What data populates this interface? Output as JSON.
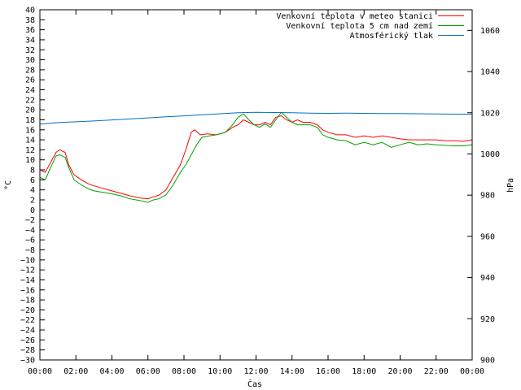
{
  "chart_data": {
    "type": "line",
    "title": "",
    "xlabel": "Čas",
    "ylabel_left": "°C",
    "ylabel_right": "hPa",
    "x_ticks": [
      "00:00",
      "02:00",
      "04:00",
      "06:00",
      "08:00",
      "10:00",
      "12:00",
      "14:00",
      "16:00",
      "18:00",
      "20:00",
      "22:00",
      "00:00"
    ],
    "xlim_hours": [
      0,
      24
    ],
    "ylim_left": [
      -30,
      40
    ],
    "ylim_right": [
      900,
      1070
    ],
    "y_ticks_left": [
      40,
      38,
      36,
      34,
      32,
      30,
      28,
      26,
      24,
      22,
      20,
      18,
      16,
      14,
      12,
      10,
      8,
      6,
      4,
      2,
      0,
      -2,
      -4,
      -6,
      -8,
      -10,
      -12,
      -14,
      -16,
      -18,
      -20,
      -22,
      -24,
      -26,
      -28,
      -30
    ],
    "y_ticks_right": [
      1060,
      1040,
      1020,
      1000,
      980,
      960,
      940,
      920,
      900
    ],
    "grid": false,
    "legend_position": "top-right",
    "series": [
      {
        "name": "Venkovní teplota v meteo stanici",
        "color": "#ff0000",
        "axis": "left",
        "points": [
          [
            0,
            8
          ],
          [
            0.3,
            7.5
          ],
          [
            0.6,
            9.5
          ],
          [
            0.9,
            11.5
          ],
          [
            1.1,
            12
          ],
          [
            1.4,
            11.5
          ],
          [
            1.6,
            9
          ],
          [
            1.9,
            7
          ],
          [
            2.3,
            6
          ],
          [
            2.7,
            5.2
          ],
          [
            3,
            4.8
          ],
          [
            3.5,
            4.3
          ],
          [
            4,
            3.8
          ],
          [
            4.5,
            3.3
          ],
          [
            5,
            2.8
          ],
          [
            5.5,
            2.4
          ],
          [
            6,
            2.2
          ],
          [
            6.3,
            2.6
          ],
          [
            6.6,
            2.9
          ],
          [
            7,
            4
          ],
          [
            7.4,
            6.5
          ],
          [
            7.8,
            9
          ],
          [
            8.1,
            12
          ],
          [
            8.4,
            15.5
          ],
          [
            8.6,
            16
          ],
          [
            8.9,
            15
          ],
          [
            9.3,
            15.2
          ],
          [
            9.8,
            15
          ],
          [
            10.3,
            15.5
          ],
          [
            10.7,
            16.5
          ],
          [
            11,
            17
          ],
          [
            11.3,
            18
          ],
          [
            11.6,
            17.5
          ],
          [
            11.9,
            17
          ],
          [
            12.2,
            17
          ],
          [
            12.5,
            17.5
          ],
          [
            12.8,
            17
          ],
          [
            13.1,
            18.5
          ],
          [
            13.4,
            18.8
          ],
          [
            13.7,
            18
          ],
          [
            14,
            17.5
          ],
          [
            14.3,
            18
          ],
          [
            14.6,
            17.5
          ],
          [
            15,
            17.5
          ],
          [
            15.4,
            17
          ],
          [
            15.7,
            16
          ],
          [
            16,
            15.5
          ],
          [
            16.5,
            15
          ],
          [
            17,
            15
          ],
          [
            17.5,
            14.5
          ],
          [
            18,
            14.8
          ],
          [
            18.5,
            14.5
          ],
          [
            19,
            14.8
          ],
          [
            19.5,
            14.5
          ],
          [
            20,
            14.2
          ],
          [
            20.5,
            14
          ],
          [
            21,
            14
          ],
          [
            21.5,
            14
          ],
          [
            22,
            14
          ],
          [
            22.5,
            13.8
          ],
          [
            23,
            13.8
          ],
          [
            23.5,
            13.7
          ],
          [
            24,
            14
          ]
        ]
      },
      {
        "name": "Venkovní teplota 5 cm nad zemí",
        "color": "#00a000",
        "axis": "left",
        "points": [
          [
            0,
            6.5
          ],
          [
            0.3,
            6
          ],
          [
            0.6,
            8.5
          ],
          [
            0.9,
            10.8
          ],
          [
            1.1,
            11
          ],
          [
            1.4,
            10.5
          ],
          [
            1.6,
            8.5
          ],
          [
            1.9,
            6
          ],
          [
            2.3,
            5
          ],
          [
            2.7,
            4.2
          ],
          [
            3,
            3.8
          ],
          [
            3.5,
            3.5
          ],
          [
            4,
            3.2
          ],
          [
            4.5,
            2.8
          ],
          [
            5,
            2.2
          ],
          [
            5.5,
            1.9
          ],
          [
            6,
            1.5
          ],
          [
            6.3,
            2
          ],
          [
            6.6,
            2.2
          ],
          [
            7,
            3
          ],
          [
            7.4,
            5
          ],
          [
            7.8,
            7.5
          ],
          [
            8.1,
            9
          ],
          [
            8.4,
            11
          ],
          [
            8.7,
            13
          ],
          [
            9,
            14.5
          ],
          [
            9.4,
            14.8
          ],
          [
            9.8,
            15
          ],
          [
            10.3,
            15.5
          ],
          [
            10.7,
            17
          ],
          [
            11,
            18.5
          ],
          [
            11.3,
            19.2
          ],
          [
            11.6,
            18
          ],
          [
            11.9,
            17
          ],
          [
            12.2,
            16.5
          ],
          [
            12.5,
            17.2
          ],
          [
            12.8,
            16.5
          ],
          [
            13.1,
            18
          ],
          [
            13.4,
            19.5
          ],
          [
            13.7,
            18.5
          ],
          [
            14,
            17.5
          ],
          [
            14.3,
            17
          ],
          [
            14.6,
            17
          ],
          [
            15,
            17
          ],
          [
            15.4,
            16.5
          ],
          [
            15.7,
            15
          ],
          [
            16,
            14.5
          ],
          [
            16.5,
            14
          ],
          [
            17,
            13.8
          ],
          [
            17.5,
            13
          ],
          [
            18,
            13.5
          ],
          [
            18.5,
            13
          ],
          [
            19,
            13.5
          ],
          [
            19.5,
            12.5
          ],
          [
            20,
            13
          ],
          [
            20.5,
            13.5
          ],
          [
            21,
            13
          ],
          [
            21.5,
            13.2
          ],
          [
            22,
            13
          ],
          [
            22.5,
            12.9
          ],
          [
            23,
            12.8
          ],
          [
            23.5,
            12.8
          ],
          [
            24,
            13
          ]
        ]
      },
      {
        "name": "Atmosférický tlak",
        "color": "#0070c0",
        "axis": "right",
        "points": [
          [
            0,
            1014.5
          ],
          [
            1,
            1015.2
          ],
          [
            2,
            1015.6
          ],
          [
            3,
            1016
          ],
          [
            4,
            1016.5
          ],
          [
            5,
            1017
          ],
          [
            6,
            1017.5
          ],
          [
            7,
            1018
          ],
          [
            8,
            1018.5
          ],
          [
            9,
            1019
          ],
          [
            10,
            1019.5
          ],
          [
            11,
            1020
          ],
          [
            12,
            1020.2
          ],
          [
            13,
            1020.1
          ],
          [
            14,
            1020
          ],
          [
            15,
            1019.8
          ],
          [
            16,
            1019.7
          ],
          [
            17,
            1019.8
          ],
          [
            18,
            1019.7
          ],
          [
            19,
            1019.6
          ],
          [
            20,
            1019.6
          ],
          [
            21,
            1019.5
          ],
          [
            22,
            1019.4
          ],
          [
            23,
            1019.3
          ],
          [
            24,
            1019.3
          ]
        ]
      }
    ]
  }
}
